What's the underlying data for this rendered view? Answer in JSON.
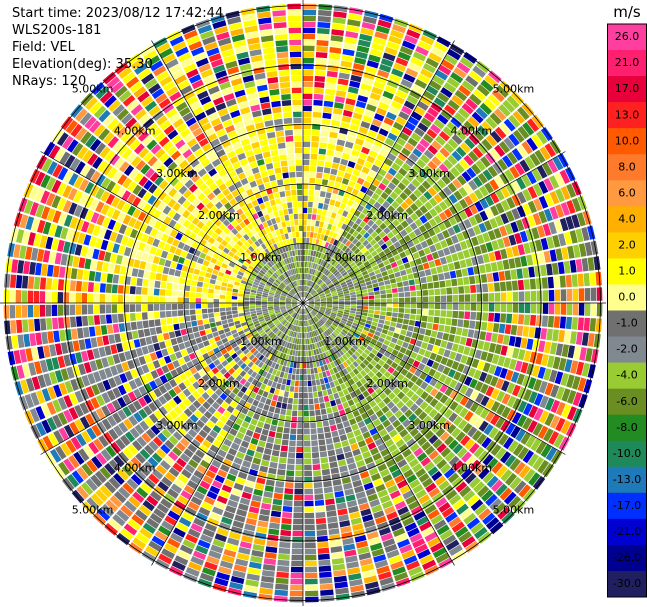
{
  "header": {
    "start_time": "Start time: 2023/08/12 17:42:44",
    "instrument": "WLS200s-181",
    "field": "Field: VEL",
    "elevation": "Elevation(deg): 35.30",
    "nrays": "NRays: 120"
  },
  "colorbar": {
    "unit": "m/s",
    "ticks": [
      "26.0",
      "21.0",
      "17.0",
      "13.0",
      "10.0",
      "8.0",
      "6.0",
      "4.0",
      "2.0",
      "1.0",
      "0.0",
      "-1.0",
      "-2.0",
      "-4.0",
      "-6.0",
      "-8.0",
      "-10.0",
      "-13.0",
      "-17.0",
      "-21.0",
      "-26.0",
      "-30.0"
    ],
    "colors": [
      "#ff3fa0",
      "#ff1f6f",
      "#e8003a",
      "#ff2020",
      "#ff5a00",
      "#ff7a2a",
      "#ff9a40",
      "#ffb000",
      "#ffd000",
      "#ffff00",
      "#ffff90",
      "#707070",
      "#808890",
      "#99cc33",
      "#6b8e23",
      "#228b22",
      "#1e8a5a",
      "#1e7ab8",
      "#0030ff",
      "#0000d0",
      "#000090",
      "#202060"
    ]
  },
  "chart_data": {
    "type": "ppi",
    "field": "VEL",
    "unit": "m/s",
    "nrays": 120,
    "elevation_deg": 35.3,
    "range_ring_labels_km": [
      "1.00km",
      "2.00km",
      "3.00km",
      "4.00km",
      "5.00km"
    ],
    "range_rings_km": [
      1,
      2,
      3,
      4,
      5
    ],
    "dominant_sectors": [
      {
        "azimuth_from_deg": 270,
        "azimuth_to_deg": 30,
        "velocity_range": "1.0 to 2.0",
        "color": "#ffff00"
      },
      {
        "azimuth_from_deg": 30,
        "azimuth_to_deg": 160,
        "velocity_range": "-1.0 to -4.0",
        "color": "#6b8e23"
      },
      {
        "azimuth_from_deg": 160,
        "azimuth_to_deg": 270,
        "velocity_range": "mixed",
        "color": "#808890"
      }
    ]
  }
}
